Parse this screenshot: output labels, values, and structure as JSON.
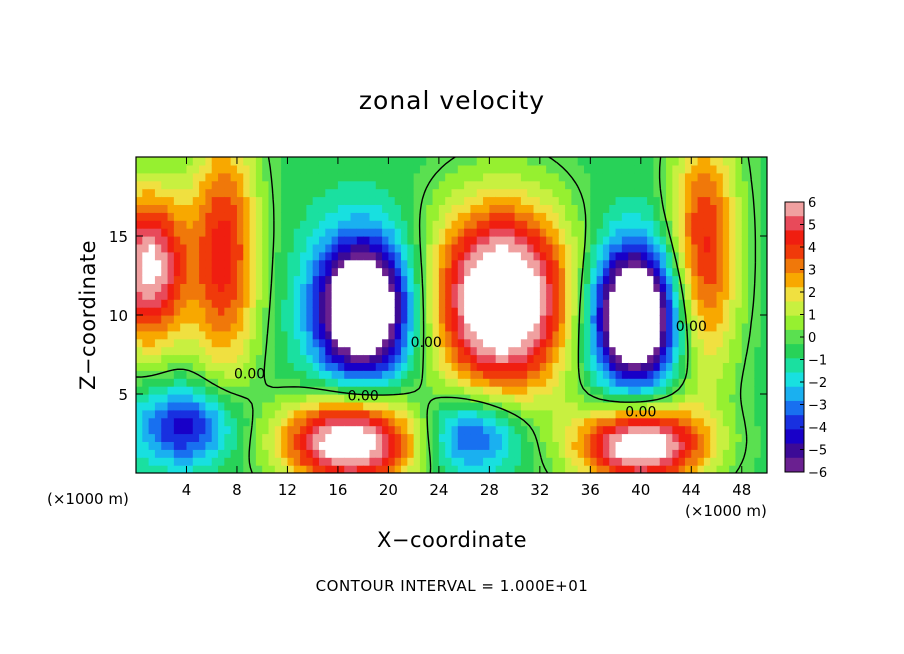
{
  "chart_data": {
    "type": "heatmap",
    "title": "zonal velocity",
    "xlabel": "X−coordinate",
    "ylabel": "Z−coordinate",
    "x_unit": "(×1000 m)",
    "footer": "CONTOUR INTERVAL = 1.000E+01",
    "xlim": [
      0,
      50
    ],
    "ylim": [
      0,
      20
    ],
    "x_ticks": [
      4,
      8,
      12,
      16,
      20,
      24,
      28,
      32,
      36,
      40,
      44,
      48
    ],
    "y_ticks": [
      5,
      10,
      15
    ],
    "colorbar": {
      "range": [
        -6,
        6
      ],
      "ticks": [
        6,
        5,
        4,
        3,
        2,
        1,
        0,
        -1,
        -2,
        -3,
        -4,
        -5,
        -6
      ],
      "tick_labels": [
        "6",
        "5",
        "4",
        "3",
        "2",
        "1",
        "0",
        "−1",
        "−2",
        "−3",
        "−4",
        "−5",
        "−6"
      ],
      "colors": [
        "#f0a0a0",
        "#e84a5a",
        "#f01e10",
        "#f03a0a",
        "#f0780a",
        "#f8a800",
        "#f0e040",
        "#c8f040",
        "#96f030",
        "#5ae050",
        "#28d258",
        "#1ae0a0",
        "#18e0e0",
        "#1ab0f0",
        "#1870f0",
        "#1830e0",
        "#1800c8",
        "#3c0a96",
        "#6a2090"
      ]
    },
    "contour_labels": [
      {
        "text": "0.00",
        "x": 18,
        "y": 4.9
      },
      {
        "text": "0.00",
        "x": 40,
        "y": 3.9
      },
      {
        "text": "0.00",
        "x": 23,
        "y": 8.3
      },
      {
        "text": "0.00",
        "x": 44,
        "y": 9.3
      },
      {
        "text": "0.00",
        "x": 9.0,
        "y": 6.3
      }
    ],
    "features": [
      {
        "sign": "positive",
        "x": 29,
        "z": 11,
        "rx": 5.5,
        "rz": 6,
        "core": 9
      },
      {
        "sign": "positive",
        "x": 7,
        "z": 14,
        "rx": 2.8,
        "rz": 8,
        "core": 5
      },
      {
        "sign": "positive",
        "x": 45,
        "z": 14,
        "rx": 2.8,
        "rz": 8,
        "core": 5
      },
      {
        "sign": "negative",
        "x": 18,
        "z": 10.5,
        "rx": 3.8,
        "rz": 4.5,
        "core": 9
      },
      {
        "sign": "negative",
        "x": 39.5,
        "z": 10,
        "rx": 3.5,
        "rz": 4.5,
        "core": 9
      },
      {
        "sign": "negative",
        "x": 4,
        "z": 3,
        "rx": 4,
        "rz": 2.5,
        "core": 4
      },
      {
        "sign": "negative",
        "x": 26.5,
        "z": 2.5,
        "rx": 4,
        "rz": 2.5,
        "core": 4
      },
      {
        "sign": "positive",
        "x": 17,
        "z": 2.0,
        "rx": 5.5,
        "rz": 2.8,
        "core": 8
      },
      {
        "sign": "positive",
        "x": 40,
        "z": 1.8,
        "rx": 5,
        "rz": 2.5,
        "core": 8
      },
      {
        "sign": "positive",
        "x": 1,
        "z": 13,
        "rx": 3,
        "rz": 5,
        "core": 7
      }
    ]
  }
}
